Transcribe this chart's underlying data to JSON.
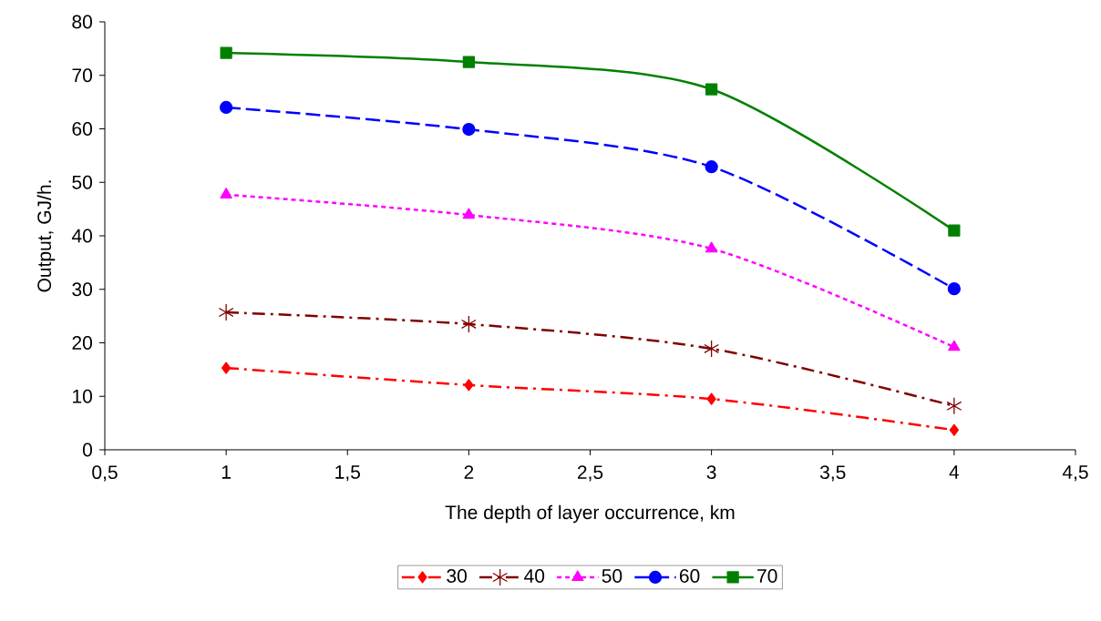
{
  "chart_data": {
    "type": "line",
    "xlabel": "The depth of layer occurrence, km",
    "ylabel": "Output, GJ/h.",
    "x": [
      1,
      2,
      3,
      4
    ],
    "series": [
      {
        "name": "30",
        "color": "#ff0000",
        "marker": "diamond",
        "line_style": "dashdot",
        "values": [
          15.3,
          12.1,
          9.5,
          3.7
        ]
      },
      {
        "name": "40",
        "color": "#800000",
        "marker": "cross",
        "line_style": "dashdot",
        "values": [
          25.7,
          23.5,
          18.9,
          8.2
        ]
      },
      {
        "name": "50",
        "color": "#ff00ff",
        "marker": "triangle",
        "line_style": "dotted",
        "values": [
          47.7,
          43.9,
          37.6,
          19.2
        ]
      },
      {
        "name": "60",
        "color": "#0000ff",
        "marker": "circle",
        "line_style": "dashed",
        "values": [
          64.0,
          59.9,
          52.9,
          30.1
        ]
      },
      {
        "name": "70",
        "color": "#008000",
        "marker": "square",
        "line_style": "solid",
        "values": [
          74.2,
          72.5,
          67.4,
          41.0
        ]
      }
    ],
    "xlim": [
      0.5,
      4.5
    ],
    "ylim": [
      0,
      80
    ],
    "xticks": [
      {
        "value": 0.5,
        "label": "0,5"
      },
      1,
      {
        "value": 1.5,
        "label": "1,5"
      },
      2,
      {
        "value": 2.5,
        "label": "2,5"
      },
      3,
      {
        "value": 3.5,
        "label": "3,5"
      },
      4,
      {
        "value": 4.5,
        "label": "4,5"
      }
    ],
    "yticks": [
      0,
      10,
      20,
      30,
      40,
      50,
      60,
      70,
      80
    ],
    "grid": false,
    "legend": "bottom"
  }
}
